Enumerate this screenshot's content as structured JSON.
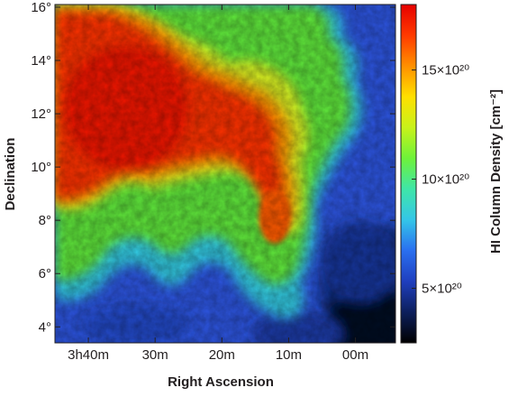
{
  "chart_data": {
    "type": "heatmap",
    "title": "",
    "xlabel": "Right Ascension",
    "ylabel": "Declination",
    "colorbar_label": "HI Column Density [cm⁻²]",
    "xlim_minutes_of_ra": [
      45,
      -6
    ],
    "ylim_deg": [
      3.4,
      16.1
    ],
    "x_ticks": [
      {
        "value": 40,
        "label": "3h40m"
      },
      {
        "value": 30,
        "label": "30m"
      },
      {
        "value": 20,
        "label": "20m"
      },
      {
        "value": 10,
        "label": "10m"
      },
      {
        "value": 0,
        "label": "00m"
      }
    ],
    "y_ticks": [
      {
        "value": 4,
        "label": "4°"
      },
      {
        "value": 6,
        "label": "6°"
      },
      {
        "value": 8,
        "label": "8°"
      },
      {
        "value": 10,
        "label": "10°"
      },
      {
        "value": 12,
        "label": "12°"
      },
      {
        "value": 14,
        "label": "14°"
      },
      {
        "value": 16,
        "label": "16°"
      }
    ],
    "colorbar": {
      "range": [
        2.5e+20,
        1.8e+21
      ],
      "ticks": [
        {
          "value": 5e+20,
          "label": "5×10²⁰"
        },
        {
          "value": 1e+21,
          "label": "10×10²⁰"
        },
        {
          "value": 1.5e+21,
          "label": "15×10²⁰"
        }
      ],
      "colors": [
        "#000000",
        "#0d1f5c",
        "#1f3fbf",
        "#2a6ff0",
        "#34c6e8",
        "#3fe6a8",
        "#6ef23a",
        "#c8f21a",
        "#ffe000",
        "#ff9000",
        "#ff3a00",
        "#e60000"
      ]
    }
  }
}
